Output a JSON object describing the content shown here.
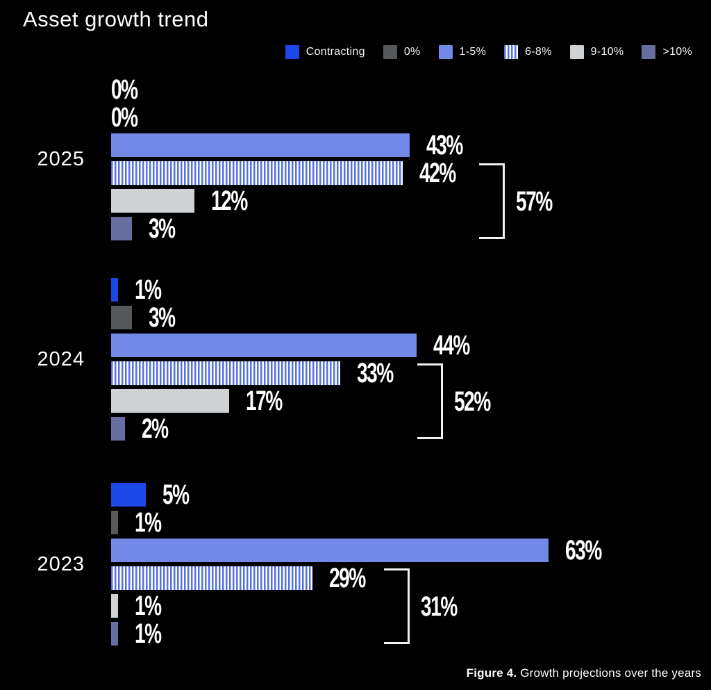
{
  "title": "Asset growth trend",
  "caption": {
    "bold": "Figure 4.",
    "text": " Growth projections over the years"
  },
  "colors": {
    "background": "#000000",
    "contracting": "#1d49e8",
    "zero": "#56585b",
    "one_five": "#7389e8",
    "stripe": "#5471e3",
    "nine_ten": "#ced2d5",
    "gt_ten": "#666fa0",
    "text": "#ffffff"
  },
  "legend": [
    {
      "label": "Contracting",
      "swatch": "solid",
      "color_key": "contracting"
    },
    {
      "label": "0%",
      "swatch": "solid",
      "color_key": "zero"
    },
    {
      "label": "1-5%",
      "swatch": "solid",
      "color_key": "one_five"
    },
    {
      "label": "6-8%",
      "swatch": "striped",
      "color_key": "stripe"
    },
    {
      "label": "9-10%",
      "swatch": "solid",
      "color_key": "nine_ten"
    },
    {
      "label": ">10%",
      "swatch": "solid",
      "color_key": "gt_ten"
    }
  ],
  "chart_data": {
    "type": "bar",
    "orientation": "horizontal",
    "unit": "percent",
    "title": "Asset growth trend",
    "xlim": [
      0,
      100
    ],
    "grid": false,
    "legend_position": "top-right",
    "categories": [
      "Contracting",
      "0%",
      "1-5%",
      "6-8%",
      "9-10%",
      ">10%"
    ],
    "groups": [
      {
        "year": "2025",
        "values": [
          0,
          0,
          43,
          42,
          12,
          3
        ],
        "labels": [
          "0%",
          "0%",
          "43%",
          "42%",
          "12%",
          "3%"
        ],
        "bracket": {
          "label": "57%",
          "value": 57,
          "sum_of": [
            "6-8%",
            "9-10%",
            ">10%"
          ]
        }
      },
      {
        "year": "2024",
        "values": [
          1,
          3,
          44,
          33,
          17,
          2
        ],
        "labels": [
          "1%",
          "3%",
          "44%",
          "33%",
          "17%",
          "2%"
        ],
        "bracket": {
          "label": "52%",
          "value": 52,
          "sum_of": [
            "6-8%",
            "9-10%",
            ">10%"
          ]
        }
      },
      {
        "year": "2023",
        "values": [
          5,
          1,
          63,
          29,
          1,
          1
        ],
        "labels": [
          "5%",
          "1%",
          "63%",
          "29%",
          "1%",
          "1%"
        ],
        "bracket": {
          "label": "31%",
          "value": 31,
          "sum_of": [
            "6-8%",
            "9-10%",
            ">10%"
          ]
        }
      }
    ]
  }
}
